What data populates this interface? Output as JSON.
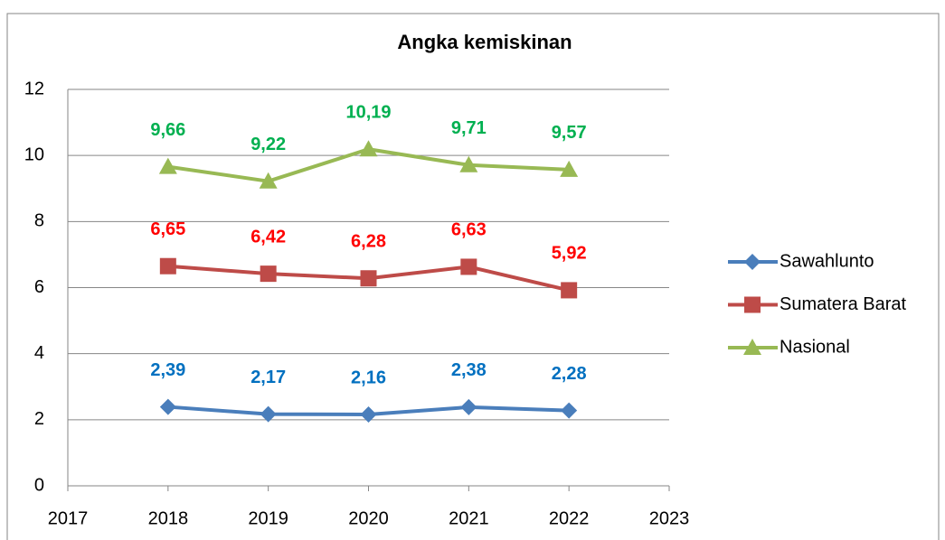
{
  "chart_data": {
    "type": "line",
    "title": "Angka kemiskinan",
    "x": [
      2018,
      2019,
      2020,
      2021,
      2022
    ],
    "xlim": [
      2017,
      2023
    ],
    "xticks": [
      2017,
      2018,
      2019,
      2020,
      2021,
      2022,
      2023
    ],
    "ylim": [
      0,
      12
    ],
    "yticks": [
      0,
      2,
      4,
      6,
      8,
      10,
      12
    ],
    "grid": true,
    "legend": "right",
    "series": [
      {
        "name": "Sawahlunto",
        "color": "#4a7ebb",
        "label_color": "#0070c0",
        "marker": "diamond",
        "values": [
          2.39,
          2.17,
          2.16,
          2.38,
          2.28
        ],
        "value_labels": [
          "2,39",
          "2,17",
          "2,16",
          "2,38",
          "2,28"
        ]
      },
      {
        "name": "Sumatera Barat",
        "color": "#be4b48",
        "label_color": "#ff0000",
        "marker": "square",
        "values": [
          6.65,
          6.42,
          6.28,
          6.63,
          5.92
        ],
        "value_labels": [
          "6,65",
          "6,42",
          "6,28",
          "6,63",
          "5,92"
        ]
      },
      {
        "name": "Nasional",
        "color": "#98b954",
        "label_color": "#00b050",
        "marker": "triangle",
        "values": [
          9.66,
          9.22,
          10.19,
          9.71,
          9.57
        ],
        "value_labels": [
          "9,66",
          "9,22",
          "10,19",
          "9,71",
          "9,57"
        ]
      }
    ]
  }
}
